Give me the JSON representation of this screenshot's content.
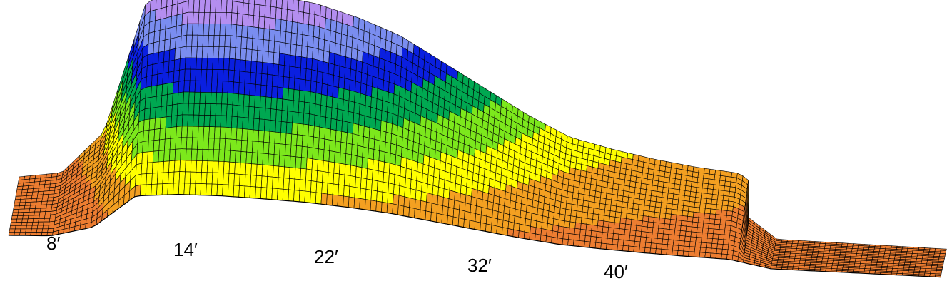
{
  "chart_data": {
    "type": "area",
    "title": "",
    "xlabel": "",
    "ylabel": "",
    "x_tick_labels": [
      "8′",
      "14′",
      "22′",
      "32′",
      "40′"
    ],
    "x_ticks": [
      8,
      14,
      22,
      32,
      40
    ],
    "series": [
      {
        "x": [
          6,
          8,
          10,
          12,
          14,
          16,
          18,
          20,
          22,
          24,
          26,
          28,
          30,
          32,
          34,
          36,
          38,
          40,
          42,
          46,
          50
        ],
        "y": [
          0.0,
          0.3,
          2.4,
          8.9,
          9.6,
          9.7,
          9.5,
          9.2,
          8.6,
          7.8,
          6.6,
          5.4,
          4.2,
          3.2,
          2.7,
          2.3,
          2.0,
          1.8,
          0.3,
          0.25,
          0.2
        ]
      }
    ],
    "elevation_bands": [
      {
        "color": "#ED7D31"
      },
      {
        "color": "#F4A021"
      },
      {
        "color": "#FFFF00"
      },
      {
        "color": "#7CE81C"
      },
      {
        "color": "#00A851"
      },
      {
        "color": "#0A1FE0"
      },
      {
        "color": "#7A8DF0"
      },
      {
        "color": "#B48EF0"
      }
    ],
    "grid": true,
    "grid_color": "#000000",
    "background": "#FFFFFF"
  }
}
